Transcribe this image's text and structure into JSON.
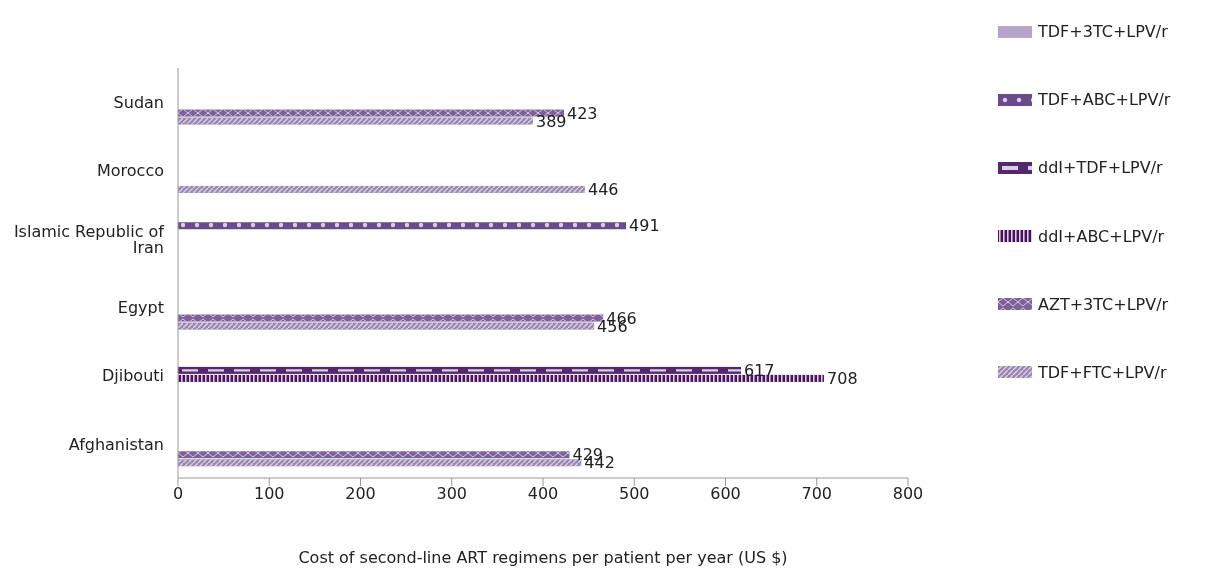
{
  "chart_data": {
    "type": "bar",
    "orientation": "horizontal",
    "xlabel": "Cost of second-line ART regimens per patient per year (US $)",
    "categories": [
      "Sudan",
      "Morocco",
      "Islamic Republic of Iran",
      "Egypt",
      "Djibouti",
      "Afghanistan"
    ],
    "series": [
      {
        "name": "TDF+3TC+LPV/r",
        "color": "#b5a5c9",
        "values": [
          null,
          null,
          null,
          null,
          null,
          null
        ]
      },
      {
        "name": "TDF+ABC+LPV/r",
        "color": "#6b4a8c",
        "values": [
          null,
          null,
          491,
          null,
          null,
          null
        ]
      },
      {
        "name": "ddI+TDF+LPV/r",
        "color": "#54296b",
        "values": [
          null,
          null,
          null,
          null,
          617,
          null
        ]
      },
      {
        "name": "ddI+ABC+LPV/r",
        "color": "#4a1059",
        "values": [
          null,
          null,
          null,
          null,
          708,
          null
        ]
      },
      {
        "name": "AZT+3TC+LPV/r",
        "color": "#7f6199",
        "values": [
          423,
          null,
          null,
          466,
          null,
          429
        ]
      },
      {
        "name": "TDF+FTC+LPV/r",
        "color": "#9a87b0",
        "values": [
          389,
          446,
          null,
          456,
          null,
          442
        ]
      }
    ],
    "xlim": [
      0,
      800
    ],
    "xticks": [
      0,
      100,
      200,
      300,
      400,
      500,
      600,
      700,
      800
    ],
    "data_labels": true,
    "grid": false,
    "legend": "right"
  }
}
